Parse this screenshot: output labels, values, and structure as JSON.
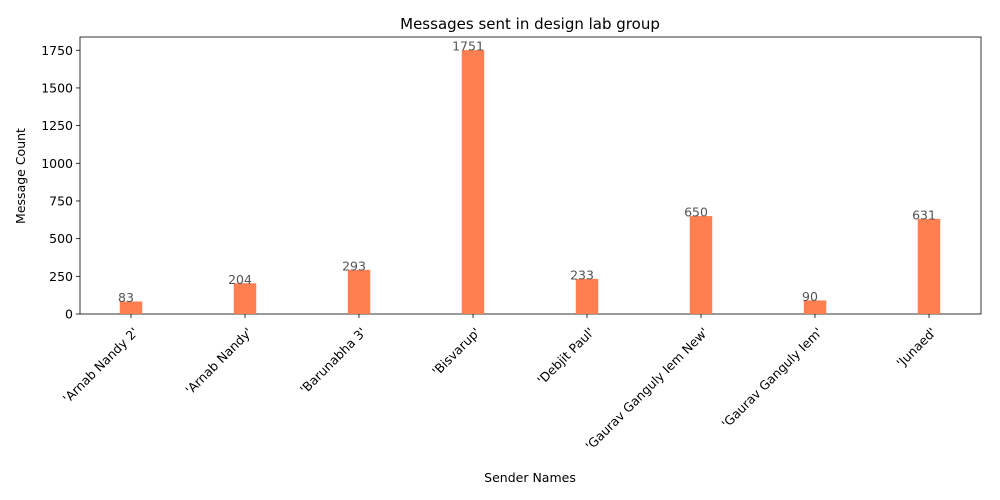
{
  "chart_data": {
    "type": "bar",
    "title": "Messages sent in design lab group",
    "xlabel": "Sender Names",
    "ylabel": "Message Count",
    "categories": [
      "'Arnab Nandy 2'",
      "'Arnab Nandy'",
      "'Barunabha 3'",
      "'Bisvarup'",
      "'Debjit Paul'",
      "'Gaurav Ganguly Iem New'",
      "'Gaurav Ganguly Iem'",
      "'Junaed'"
    ],
    "values": [
      83,
      204,
      293,
      1751,
      233,
      650,
      90,
      631
    ],
    "data_labels": [
      "83",
      "204",
      "293",
      "1751",
      "233",
      "650",
      "90",
      "631"
    ],
    "ylim": [
      0,
      1838
    ],
    "yticks": [
      0,
      250,
      500,
      750,
      1000,
      1250,
      1500,
      1750
    ],
    "ytick_labels": [
      "0",
      "250",
      "500",
      "750",
      "1000",
      "1250",
      "1500",
      "1750"
    ],
    "grid": false,
    "bar_color": "#ff7f50"
  }
}
